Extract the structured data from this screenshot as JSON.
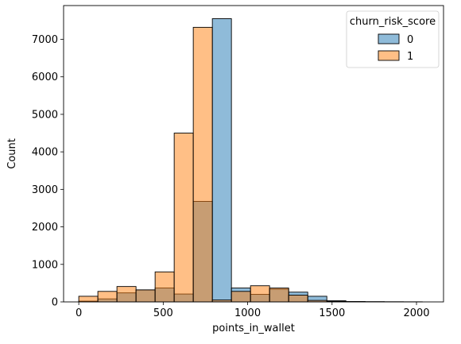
{
  "chart_data": {
    "type": "bar",
    "xlabel": "points_in_wallet",
    "ylabel": "Count",
    "xlim": [
      -90,
      2160
    ],
    "ylim": [
      0,
      7900
    ],
    "xticks": [
      0,
      500,
      1000,
      1500,
      2000
    ],
    "yticks": [
      0,
      1000,
      2000,
      3000,
      4000,
      5000,
      6000,
      7000
    ],
    "bin_edges": [
      0,
      113,
      226,
      339,
      452,
      565,
      678,
      791,
      904,
      1017,
      1130,
      1243,
      1356,
      1469,
      1582,
      1695,
      1808,
      1921,
      2034
    ],
    "legend": {
      "title": "churn_risk_score",
      "placement": "top-right"
    },
    "series": [
      {
        "name": "0",
        "color": "#1f77b4",
        "values": [
          20,
          80,
          240,
          320,
          370,
          210,
          2680,
          7550,
          370,
          200,
          340,
          260,
          150,
          30,
          10,
          5,
          3,
          2
        ]
      },
      {
        "name": "1",
        "color": "#ff7f0e",
        "values": [
          150,
          280,
          410,
          320,
          800,
          4500,
          7320,
          50,
          280,
          430,
          370,
          180,
          40,
          15,
          8,
          5,
          3,
          2
        ]
      }
    ]
  }
}
